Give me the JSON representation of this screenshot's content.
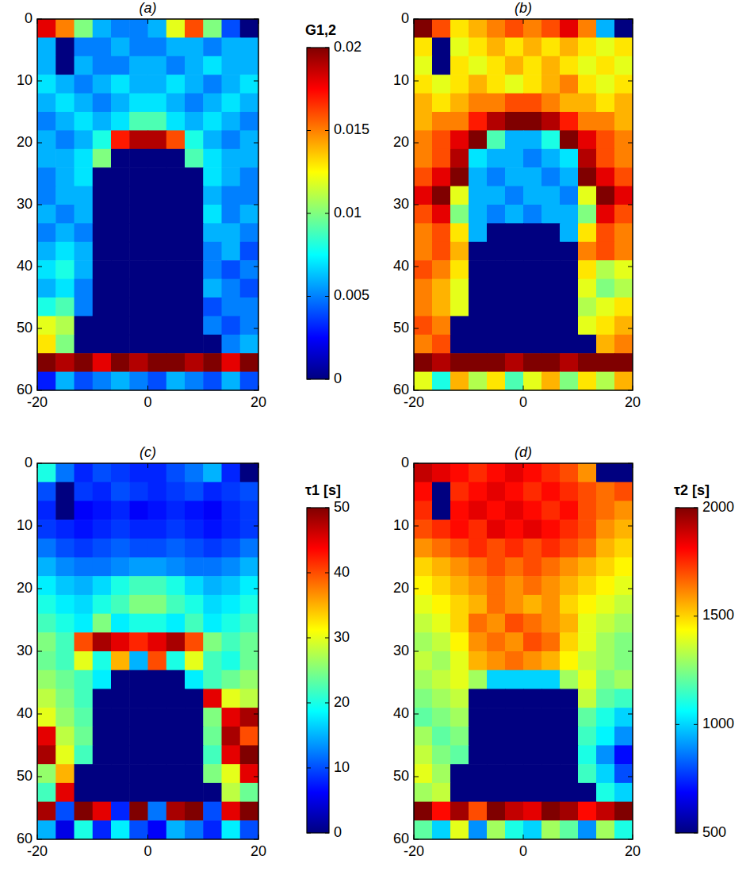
{
  "chart_data": [
    {
      "type": "heatmap",
      "title": "(a)",
      "xlim": [
        -20,
        20
      ],
      "ylim": [
        0,
        60
      ],
      "xticks": [
        -20,
        0,
        20
      ],
      "yticks": [
        0,
        10,
        20,
        30,
        40,
        50,
        60
      ],
      "colorbar_label": "G1,2",
      "colorbar_range": [
        0,
        0.02
      ],
      "colorbar_ticks": [
        0,
        0.005,
        0.01,
        0.015,
        0.02
      ],
      "values": [
        [
          0.018,
          0.015,
          0.01,
          0.006,
          0.005,
          0.005,
          0.006,
          0.012,
          0.016,
          0.01,
          0.004,
          0
        ],
        [
          0.006,
          0,
          0.005,
          0.005,
          0.006,
          0.005,
          0.005,
          0.006,
          0.006,
          0.005,
          0.006,
          0.006
        ],
        [
          0.006,
          0,
          0.006,
          0.005,
          0.005,
          0.006,
          0.006,
          0.005,
          0.006,
          0.007,
          0.006,
          0.006
        ],
        [
          0.007,
          0.006,
          0.005,
          0.006,
          0.007,
          0.006,
          0.006,
          0.007,
          0.006,
          0.005,
          0.006,
          0.007
        ],
        [
          0.006,
          0.007,
          0.006,
          0.005,
          0.006,
          0.007,
          0.007,
          0.006,
          0.005,
          0.006,
          0.007,
          0.006
        ],
        [
          0.005,
          0.006,
          0.007,
          0.006,
          0.007,
          0.009,
          0.009,
          0.007,
          0.006,
          0.007,
          0.006,
          0.005
        ],
        [
          0.006,
          0.005,
          0.006,
          0.008,
          0.017,
          0.019,
          0.019,
          0.016,
          0.008,
          0.006,
          0.005,
          0.006
        ],
        [
          0.006,
          0.006,
          0.007,
          0.01,
          0,
          0,
          0,
          0,
          0.009,
          0.007,
          0.006,
          0.006
        ],
        [
          0.005,
          0.006,
          0.007,
          0,
          0,
          0,
          0,
          0,
          0,
          0.007,
          0.006,
          0.005
        ],
        [
          0.005,
          0.006,
          0.006,
          0,
          0,
          0,
          0,
          0,
          0,
          0.006,
          0.005,
          0.005
        ],
        [
          0.006,
          0.005,
          0.006,
          0,
          0,
          0,
          0,
          0,
          0,
          0.007,
          0.005,
          0.006
        ],
        [
          0.005,
          0.006,
          0.005,
          0,
          0,
          0,
          0,
          0,
          0,
          0.006,
          0.006,
          0.005
        ],
        [
          0.006,
          0.007,
          0.006,
          0,
          0,
          0,
          0,
          0,
          0,
          0.005,
          0.006,
          0.004
        ],
        [
          0.007,
          0.008,
          0.006,
          0,
          0,
          0,
          0,
          0,
          0,
          0.005,
          0.004,
          0.005
        ],
        [
          0.006,
          0.007,
          0.005,
          0,
          0,
          0,
          0,
          0,
          0,
          0.006,
          0.005,
          0.004
        ],
        [
          0.008,
          0.009,
          0.005,
          0,
          0,
          0,
          0,
          0,
          0,
          0.004,
          0.005,
          0.005
        ],
        [
          0.012,
          0.011,
          0,
          0,
          0,
          0,
          0,
          0,
          0,
          0.005,
          0.004,
          0.005
        ],
        [
          0.013,
          0.01,
          0,
          0,
          0,
          0,
          0,
          0,
          0,
          0,
          0.005,
          0.006
        ],
        [
          0.02,
          0.019,
          0.02,
          0.018,
          0.02,
          0.019,
          0.02,
          0.02,
          0.019,
          0.02,
          0.018,
          0.02
        ],
        [
          0.003,
          0.006,
          0.004,
          0.005,
          0.006,
          0.005,
          0.004,
          0.006,
          0.005,
          0.004,
          0.006,
          0.004
        ]
      ]
    },
    {
      "type": "heatmap",
      "title": "(b)",
      "xlim": [
        -20,
        20
      ],
      "ylim": [
        0,
        60
      ],
      "xticks": [
        -20,
        0,
        20
      ],
      "yticks": [
        0,
        10,
        20,
        30,
        40,
        50,
        60
      ],
      "values": [
        [
          0.02,
          0.016,
          0.013,
          0.014,
          0.015,
          0.016,
          0.015,
          0.016,
          0.018,
          0.015,
          0.006,
          0
        ],
        [
          0.013,
          0,
          0.012,
          0.013,
          0.014,
          0.013,
          0.014,
          0.013,
          0.014,
          0.013,
          0.012,
          0.013
        ],
        [
          0.012,
          0,
          0.013,
          0.012,
          0.013,
          0.014,
          0.013,
          0.014,
          0.013,
          0.012,
          0.013,
          0.012
        ],
        [
          0.013,
          0.012,
          0.013,
          0.014,
          0.013,
          0.012,
          0.013,
          0.014,
          0.015,
          0.013,
          0.012,
          0.013
        ],
        [
          0.014,
          0.013,
          0.014,
          0.015,
          0.015,
          0.016,
          0.016,
          0.015,
          0.014,
          0.014,
          0.013,
          0.014
        ],
        [
          0.014,
          0.015,
          0.015,
          0.017,
          0.019,
          0.02,
          0.02,
          0.019,
          0.017,
          0.015,
          0.015,
          0.014
        ],
        [
          0.015,
          0.016,
          0.018,
          0.02,
          0.009,
          0.006,
          0.006,
          0.008,
          0.02,
          0.018,
          0.016,
          0.015
        ],
        [
          0.015,
          0.016,
          0.019,
          0.007,
          0.006,
          0.006,
          0.005,
          0.006,
          0.007,
          0.019,
          0.016,
          0.015
        ],
        [
          0.016,
          0.018,
          0.02,
          0.006,
          0.005,
          0.006,
          0.006,
          0.005,
          0.006,
          0.02,
          0.018,
          0.016
        ],
        [
          0.018,
          0.02,
          0.012,
          0.006,
          0.006,
          0.005,
          0.006,
          0.006,
          0.005,
          0.012,
          0.02,
          0.018
        ],
        [
          0.016,
          0.018,
          0.01,
          0.006,
          0.005,
          0.006,
          0.005,
          0.006,
          0.006,
          0.01,
          0.018,
          0.016
        ],
        [
          0.015,
          0.016,
          0.013,
          0.006,
          0,
          0,
          0,
          0,
          0.006,
          0.013,
          0.016,
          0.015
        ],
        [
          0.015,
          0.016,
          0.014,
          0,
          0,
          0,
          0,
          0,
          0,
          0.015,
          0.016,
          0.015
        ],
        [
          0.016,
          0.015,
          0.013,
          0,
          0,
          0,
          0,
          0,
          0,
          0.013,
          0.011,
          0.012
        ],
        [
          0.015,
          0.014,
          0.012,
          0,
          0,
          0,
          0,
          0,
          0,
          0.012,
          0.01,
          0.011
        ],
        [
          0.015,
          0.014,
          0.012,
          0,
          0,
          0,
          0,
          0,
          0,
          0.011,
          0.012,
          0.013
        ],
        [
          0.016,
          0.015,
          0,
          0,
          0,
          0,
          0,
          0,
          0,
          0.012,
          0.013,
          0.014
        ],
        [
          0.015,
          0.016,
          0,
          0,
          0,
          0,
          0,
          0,
          0,
          0,
          0.014,
          0.015
        ],
        [
          0.02,
          0.019,
          0.02,
          0.02,
          0.02,
          0.019,
          0.02,
          0.02,
          0.019,
          0.02,
          0.02,
          0.02
        ],
        [
          0.012,
          0.008,
          0.014,
          0.011,
          0.013,
          0.009,
          0.012,
          0.014,
          0.01,
          0.013,
          0.011,
          0.014
        ]
      ]
    },
    {
      "type": "heatmap",
      "title": "(c)",
      "xlim": [
        -20,
        20
      ],
      "ylim": [
        0,
        60
      ],
      "xticks": [
        -20,
        0,
        20
      ],
      "yticks": [
        0,
        10,
        20,
        30,
        40,
        50,
        60
      ],
      "colorbar_label": "τ1 [s]",
      "colorbar_range": [
        0,
        50
      ],
      "colorbar_ticks": [
        0,
        10,
        20,
        30,
        40,
        50
      ],
      "values": [
        [
          20,
          12,
          8,
          10,
          9,
          8,
          8,
          10,
          12,
          15,
          8,
          0
        ],
        [
          10,
          0,
          9,
          8,
          10,
          9,
          8,
          9,
          10,
          8,
          9,
          10
        ],
        [
          8,
          0,
          6,
          7,
          8,
          6,
          7,
          8,
          7,
          6,
          8,
          9
        ],
        [
          9,
          8,
          7,
          8,
          9,
          8,
          8,
          9,
          8,
          7,
          8,
          9
        ],
        [
          12,
          10,
          9,
          10,
          11,
          10,
          10,
          11,
          10,
          9,
          10,
          12
        ],
        [
          15,
          13,
          12,
          12,
          13,
          14,
          14,
          13,
          12,
          12,
          13,
          15
        ],
        [
          18,
          16,
          15,
          17,
          20,
          22,
          22,
          20,
          17,
          15,
          16,
          18
        ],
        [
          20,
          18,
          17,
          20,
          22,
          25,
          25,
          22,
          20,
          17,
          18,
          20
        ],
        [
          22,
          20,
          18,
          25,
          18,
          20,
          20,
          18,
          22,
          18,
          20,
          22
        ],
        [
          25,
          22,
          40,
          48,
          45,
          42,
          45,
          48,
          40,
          25,
          22,
          24
        ],
        [
          24,
          22,
          30,
          20,
          35,
          15,
          40,
          20,
          30,
          22,
          20,
          24
        ],
        [
          26,
          24,
          22,
          18,
          0,
          0,
          0,
          0,
          18,
          22,
          24,
          26
        ],
        [
          28,
          25,
          22,
          0,
          0,
          0,
          0,
          0,
          0,
          45,
          30,
          28
        ],
        [
          30,
          26,
          23,
          0,
          0,
          0,
          0,
          0,
          0,
          25,
          45,
          48
        ],
        [
          45,
          28,
          24,
          0,
          0,
          0,
          0,
          0,
          0,
          24,
          48,
          40
        ],
        [
          48,
          30,
          22,
          0,
          0,
          0,
          0,
          0,
          0,
          22,
          45,
          50
        ],
        [
          26,
          35,
          0,
          0,
          0,
          0,
          0,
          0,
          0,
          25,
          30,
          45
        ],
        [
          22,
          45,
          0,
          0,
          0,
          0,
          0,
          0,
          0,
          0,
          28,
          24
        ],
        [
          48,
          10,
          50,
          45,
          8,
          50,
          12,
          48,
          50,
          10,
          45,
          50
        ],
        [
          15,
          5,
          20,
          8,
          18,
          10,
          6,
          15,
          12,
          8,
          18,
          10
        ]
      ]
    },
    {
      "type": "heatmap",
      "title": "(d)",
      "xlim": [
        -20,
        20
      ],
      "ylim": [
        0,
        60
      ],
      "xticks": [
        -20,
        0,
        20
      ],
      "yticks": [
        0,
        10,
        20,
        30,
        40,
        50,
        60
      ],
      "colorbar_label": "τ2 [s]",
      "colorbar_range": [
        500,
        2000
      ],
      "colorbar_ticks": [
        500,
        1000,
        1500,
        2000
      ],
      "values": [
        [
          1900,
          1850,
          1800,
          1750,
          1800,
          1850,
          1800,
          1750,
          1700,
          1600,
          500,
          500
        ],
        [
          1800,
          500,
          1750,
          1800,
          1850,
          1800,
          1750,
          1800,
          1750,
          1700,
          1650,
          1700
        ],
        [
          1750,
          500,
          1800,
          1850,
          1800,
          1850,
          1800,
          1750,
          1800,
          1700,
          1650,
          1600
        ],
        [
          1700,
          1750,
          1800,
          1750,
          1850,
          1800,
          1850,
          1800,
          1750,
          1700,
          1600,
          1550
        ],
        [
          1600,
          1650,
          1700,
          1750,
          1700,
          1750,
          1700,
          1750,
          1700,
          1650,
          1550,
          1500
        ],
        [
          1500,
          1550,
          1600,
          1650,
          1700,
          1650,
          1700,
          1650,
          1600,
          1550,
          1500,
          1450
        ],
        [
          1450,
          1500,
          1550,
          1600,
          1650,
          1600,
          1650,
          1600,
          1550,
          1500,
          1450,
          1400
        ],
        [
          1400,
          1450,
          1500,
          1550,
          1650,
          1600,
          1550,
          1600,
          1500,
          1450,
          1400,
          1350
        ],
        [
          1350,
          1400,
          1500,
          1650,
          1600,
          1700,
          1650,
          1600,
          1550,
          1400,
          1350,
          1300
        ],
        [
          1300,
          1350,
          1450,
          1600,
          1650,
          1600,
          1700,
          1650,
          1500,
          1400,
          1300,
          1250
        ],
        [
          1350,
          1300,
          1400,
          1550,
          1600,
          1650,
          1600,
          1550,
          1450,
          1350,
          1300,
          1250
        ],
        [
          1300,
          1350,
          1400,
          1300,
          1000,
          1000,
          1000,
          1000,
          1300,
          1400,
          1250,
          1300
        ],
        [
          1250,
          1300,
          1350,
          500,
          500,
          500,
          500,
          500,
          500,
          1350,
          1200,
          1150
        ],
        [
          1200,
          1250,
          1300,
          500,
          500,
          500,
          500,
          500,
          500,
          1200,
          1100,
          1000
        ],
        [
          1300,
          1200,
          1250,
          500,
          500,
          500,
          500,
          500,
          500,
          1150,
          1050,
          900
        ],
        [
          1350,
          1250,
          1200,
          500,
          500,
          500,
          500,
          500,
          500,
          1100,
          900,
          700
        ],
        [
          1400,
          1300,
          500,
          500,
          500,
          500,
          500,
          500,
          500,
          1150,
          1000,
          800
        ],
        [
          1300,
          1350,
          500,
          500,
          500,
          500,
          500,
          500,
          500,
          500,
          1100,
          1000
        ],
        [
          2000,
          1800,
          1950,
          1700,
          2000,
          1900,
          1850,
          2000,
          1950,
          1800,
          1900,
          2000
        ],
        [
          1200,
          1000,
          1400,
          900,
          1300,
          1100,
          1000,
          1300,
          1200,
          900,
          1300,
          1100
        ]
      ]
    }
  ]
}
